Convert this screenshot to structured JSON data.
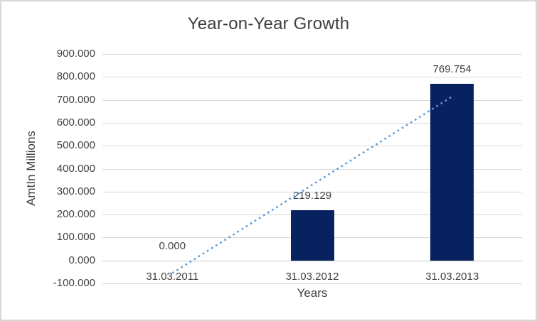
{
  "window": {
    "background": "#ffffff",
    "border_color": "#d8d8d8"
  },
  "chart_data": {
    "type": "bar",
    "title": "Year-on-Year Growth",
    "xlabel": "Years",
    "ylabel": "AmtIn Millions",
    "categories": [
      "31.03.2011",
      "31.03.2012",
      "31.03.2013"
    ],
    "values": [
      0,
      219.129,
      769.754
    ],
    "data_labels": [
      "0.000",
      "219.129",
      "769.754"
    ],
    "ylim": [
      -100,
      900
    ],
    "ytick_values": [
      900,
      800,
      700,
      600,
      500,
      400,
      300,
      200,
      100,
      0,
      -100
    ],
    "ytick_labels": [
      "900.000",
      "800.000",
      "700.000",
      "600.000",
      "500.000",
      "400.000",
      "300.000",
      "200.000",
      "100.000",
      "0.000",
      "-100.000"
    ],
    "grid": true,
    "legend_position": "none",
    "bar_color": "#08225f",
    "gridline_color": "#d9d9d9",
    "axis_line_color": "#c9c9c9",
    "text_color": "#404040",
    "trendline": {
      "type": "linear",
      "style": "dotted",
      "color": "#5b9bd5",
      "points": [
        {
          "category_index": 0,
          "value": -55.25
        },
        {
          "category_index": 2,
          "value": 714.51
        }
      ]
    }
  }
}
